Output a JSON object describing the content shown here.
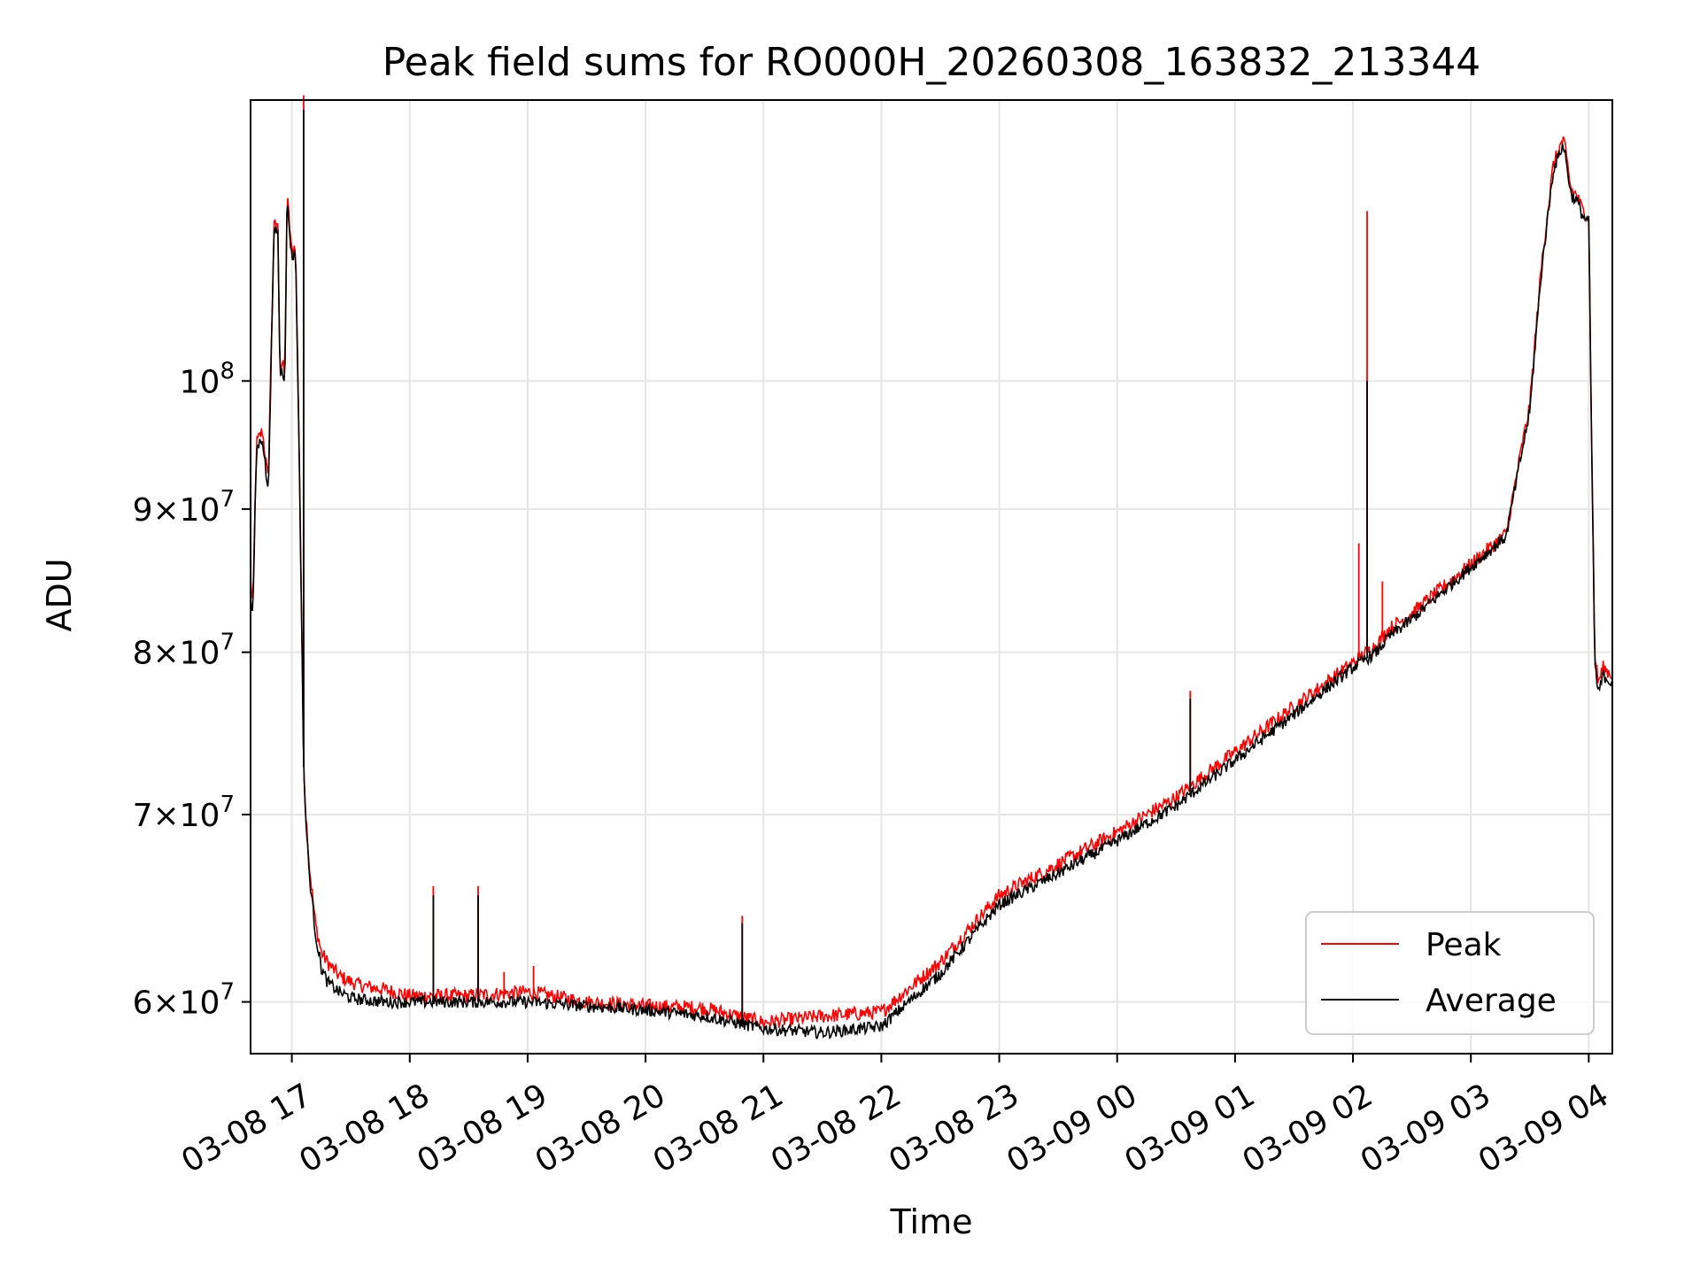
{
  "chart_data": {
    "type": "line",
    "title": "Peak field sums for RO000H_20260308_163832_213344",
    "xlabel": "Time",
    "ylabel": "ADU",
    "yscale": "log",
    "ylim": [
      57500000,
      126000000
    ],
    "xlim_hours": [
      16.65,
      28.2
    ],
    "grid": true,
    "legend_position": "lower right",
    "x_ticks": [
      {
        "hour": 17,
        "label": "03-08 17"
      },
      {
        "hour": 18,
        "label": "03-08 18"
      },
      {
        "hour": 19,
        "label": "03-08 19"
      },
      {
        "hour": 20,
        "label": "03-08 20"
      },
      {
        "hour": 21,
        "label": "03-08 21"
      },
      {
        "hour": 22,
        "label": "03-08 22"
      },
      {
        "hour": 23,
        "label": "03-08 23"
      },
      {
        "hour": 24,
        "label": "03-09 00"
      },
      {
        "hour": 25,
        "label": "03-09 01"
      },
      {
        "hour": 26,
        "label": "03-09 02"
      },
      {
        "hour": 27,
        "label": "03-09 03"
      },
      {
        "hour": 28,
        "label": "03-09 04"
      }
    ],
    "y_ticks": [
      {
        "value": 60000000,
        "mant": "6",
        "exp": "7"
      },
      {
        "value": 70000000,
        "mant": "7",
        "exp": "7"
      },
      {
        "value": 80000000,
        "mant": "8",
        "exp": "7"
      },
      {
        "value": 90000000,
        "mant": "9",
        "exp": "7"
      },
      {
        "value": 100000000,
        "mant": "",
        "exp": "8"
      }
    ],
    "x_units": "hours since 03-08 00:00",
    "series": [
      {
        "name": "Peak",
        "color": "#ff0000",
        "x": [
          16.65,
          16.67,
          16.7,
          16.75,
          16.8,
          16.85,
          16.88,
          16.9,
          16.92,
          16.94,
          16.96,
          17.0,
          17.03,
          17.06,
          17.08,
          17.1,
          17.12,
          17.15,
          17.2,
          17.25,
          17.3,
          17.4,
          17.5,
          17.6,
          17.8,
          18.0,
          18.5,
          19.0,
          19.5,
          20.0,
          20.5,
          21.0,
          21.5,
          22.0,
          22.5,
          23.0,
          23.5,
          24.0,
          24.5,
          25.0,
          25.5,
          26.0,
          26.2,
          26.3,
          26.5,
          27.0,
          27.3,
          27.5,
          27.6,
          27.7,
          27.75,
          27.78,
          27.8,
          27.85,
          27.9,
          27.95,
          28.0,
          28.02,
          28.05,
          28.08,
          28.12,
          28.2
        ],
        "y": [
          85000000,
          83000000,
          95000000,
          96000000,
          92000000,
          113500000,
          114000000,
          101000000,
          101500000,
          100500000,
          116500000,
          111000000,
          112000000,
          96000000,
          84000000,
          73000000,
          70000000,
          67000000,
          64000000,
          62500000,
          62000000,
          61300000,
          61000000,
          60800000,
          60600000,
          60300000,
          60300000,
          60500000,
          60000000,
          59800000,
          59700000,
          59000000,
          59300000,
          59500000,
          62000000,
          65500000,
          67200000,
          69000000,
          71000000,
          73700000,
          76500000,
          79300000,
          80500000,
          81500000,
          82600000,
          86000000,
          88200000,
          98000000,
          110000000,
          119500000,
          121000000,
          122000000,
          121000000,
          117000000,
          116500000,
          115000000,
          114500000,
          98000000,
          80000000,
          78000000,
          79000000,
          78500000
        ],
        "spikes": [
          {
            "x": 17.1,
            "y": 126500000
          },
          {
            "x": 18.2,
            "y": 66000000
          },
          {
            "x": 18.58,
            "y": 66000000
          },
          {
            "x": 18.8,
            "y": 61500000
          },
          {
            "x": 19.05,
            "y": 61800000
          },
          {
            "x": 20.82,
            "y": 64400000
          },
          {
            "x": 24.62,
            "y": 77500000
          },
          {
            "x": 26.05,
            "y": 87500000
          },
          {
            "x": 26.12,
            "y": 115000000
          },
          {
            "x": 26.25,
            "y": 84800000
          }
        ]
      },
      {
        "name": "Average",
        "color": "#000000",
        "x": [
          16.65,
          16.67,
          16.7,
          16.75,
          16.8,
          16.85,
          16.88,
          16.9,
          16.92,
          16.94,
          16.96,
          17.0,
          17.03,
          17.06,
          17.08,
          17.1,
          17.12,
          17.15,
          17.2,
          17.25,
          17.3,
          17.4,
          17.5,
          17.6,
          17.8,
          18.0,
          18.5,
          19.0,
          19.5,
          20.0,
          20.5,
          21.0,
          21.5,
          22.0,
          22.5,
          23.0,
          23.5,
          24.0,
          24.5,
          25.0,
          25.5,
          26.0,
          26.2,
          26.3,
          26.5,
          27.0,
          27.3,
          27.5,
          27.6,
          27.7,
          27.75,
          27.78,
          27.8,
          27.85,
          27.9,
          27.95,
          28.0,
          28.02,
          28.05,
          28.08,
          28.12,
          28.2
        ],
        "y": [
          83500000,
          82500000,
          94500000,
          95500000,
          91000000,
          113000000,
          113500000,
          100500000,
          101000000,
          100000000,
          116000000,
          110500000,
          111500000,
          95500000,
          83500000,
          72800000,
          69500000,
          66500000,
          63500000,
          61700000,
          61000000,
          60500000,
          60200000,
          60100000,
          60000000,
          60000000,
          60000000,
          60000000,
          59800000,
          59600000,
          59300000,
          58700000,
          58500000,
          58800000,
          61400000,
          65000000,
          66700000,
          68500000,
          70500000,
          73200000,
          76000000,
          79000000,
          80000000,
          81000000,
          82200000,
          85800000,
          88000000,
          97500000,
          109500000,
          119000000,
          120500000,
          121500000,
          120500000,
          116500000,
          116000000,
          114500000,
          114000000,
          97500000,
          79500000,
          77200000,
          78500000,
          78000000
        ],
        "spikes": [
          {
            "x": 17.1,
            "y": 125000000
          },
          {
            "x": 18.2,
            "y": 65500000
          },
          {
            "x": 18.58,
            "y": 65500000
          },
          {
            "x": 20.82,
            "y": 64000000
          },
          {
            "x": 24.62,
            "y": 77000000
          },
          {
            "x": 26.12,
            "y": 100000000
          }
        ]
      }
    ]
  }
}
